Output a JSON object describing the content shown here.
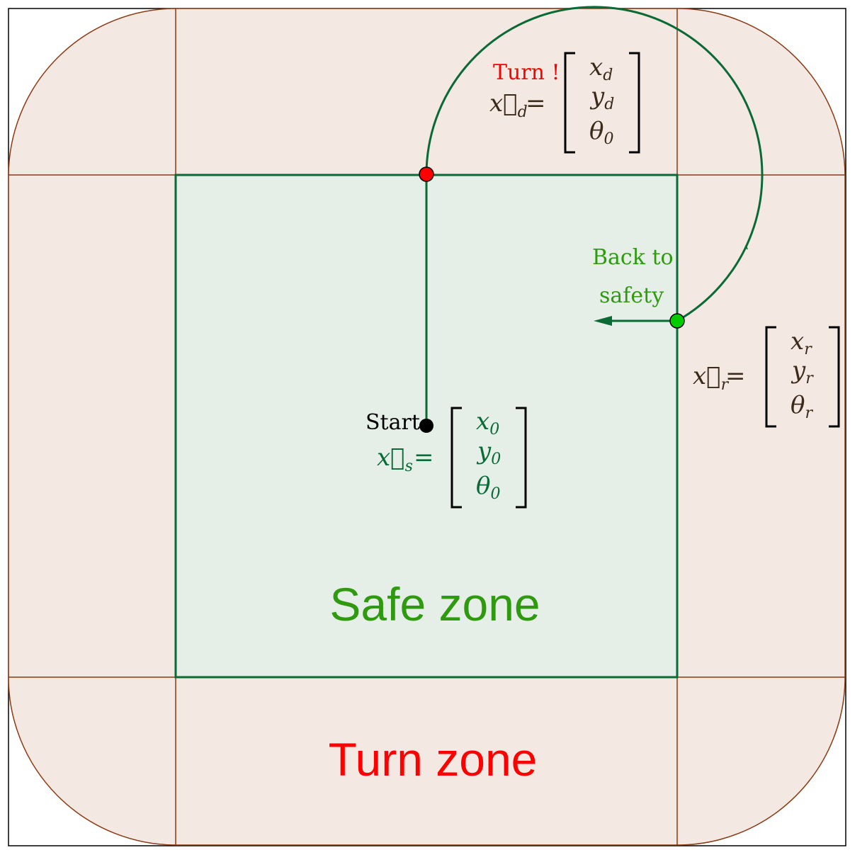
{
  "labels": {
    "safe_zone": "Safe zone",
    "turn_zone": "Turn zone",
    "start": "Start",
    "turn": "Turn !",
    "back_to": "Back to",
    "safety": "safety"
  },
  "vectors": {
    "start": {
      "lhs": "x⃗",
      "lhs_sub": "s",
      "rows": [
        [
          "x",
          "0"
        ],
        [
          "y",
          "0"
        ],
        [
          "θ",
          "0"
        ]
      ]
    },
    "turn": {
      "lhs": "x⃗",
      "lhs_sub": "d",
      "rows": [
        [
          "x",
          "d"
        ],
        [
          "y",
          "d"
        ],
        [
          "θ",
          "0"
        ]
      ]
    },
    "return": {
      "lhs": "x⃗",
      "lhs_sub": "r",
      "rows": [
        [
          "x",
          "r"
        ],
        [
          "y",
          "r"
        ],
        [
          "θ",
          "r"
        ]
      ]
    }
  },
  "colors": {
    "safe_fill": "#e5efe8",
    "turn_fill": "#f4e8e3",
    "zone_border": "#8b3a13",
    "path": "#0a6a36",
    "turn_point": "#ff0000",
    "return_point": "#00cc00",
    "start_point": "#000000",
    "safe_text": "#2f9a10",
    "turn_text": "#ff0000",
    "back_text": "#2f9a10",
    "math_text": "#3a2a1a"
  }
}
